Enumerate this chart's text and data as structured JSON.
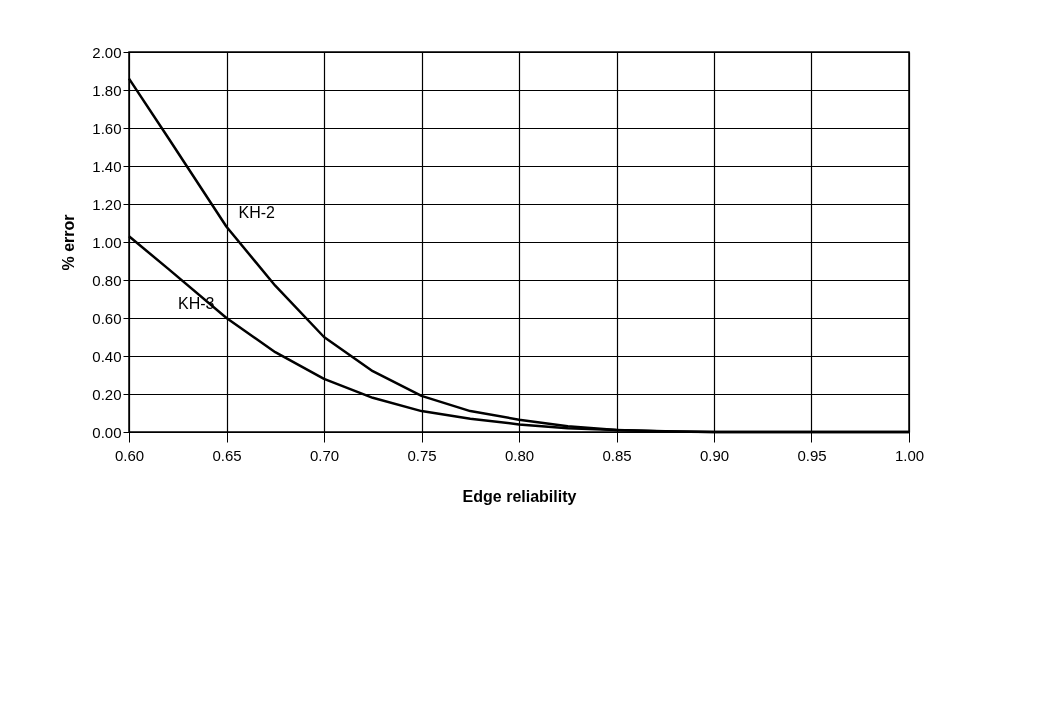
{
  "chart_data": {
    "type": "line",
    "xlabel": "Edge reliability",
    "ylabel": "% error",
    "x": [
      0.6,
      0.62,
      0.65,
      0.675,
      0.7,
      0.725,
      0.75,
      0.775,
      0.8,
      0.825,
      0.85,
      0.875,
      0.9,
      0.95,
      1.0
    ],
    "series": [
      {
        "name": "KH-2",
        "color": "#000000",
        "values": [
          1.86,
          1.55,
          1.08,
          0.77,
          0.5,
          0.32,
          0.19,
          0.11,
          0.065,
          0.03,
          0.01,
          0.004,
          0.0,
          0.0,
          0.0
        ]
      },
      {
        "name": "KH-3",
        "color": "#000000",
        "values": [
          1.03,
          0.86,
          0.6,
          0.42,
          0.28,
          0.18,
          0.11,
          0.07,
          0.04,
          0.02,
          0.01,
          0.003,
          0.0,
          0.0,
          0.0
        ]
      }
    ],
    "xlim": [
      0.6,
      1.0
    ],
    "xticks": [
      {
        "value": 0.6,
        "label": "0.60"
      },
      {
        "value": 0.65,
        "label": "0.65"
      },
      {
        "value": 0.7,
        "label": "0.70"
      },
      {
        "value": 0.75,
        "label": "0.75"
      },
      {
        "value": 0.8,
        "label": "0.80"
      },
      {
        "value": 0.85,
        "label": "0.85"
      },
      {
        "value": 0.9,
        "label": "0.90"
      },
      {
        "value": 0.95,
        "label": "0.95"
      },
      {
        "value": 1.0,
        "label": "1.00"
      }
    ],
    "ylim": [
      0,
      2.0
    ],
    "yticks": [
      {
        "value": 0,
        "label": "0.00"
      },
      {
        "value": 0.2,
        "label": "0.20"
      },
      {
        "value": 0.4,
        "label": "0.40"
      },
      {
        "value": 0.6,
        "label": "0.60"
      },
      {
        "value": 0.8,
        "label": "0.80"
      },
      {
        "value": 1.0,
        "label": "1.00"
      },
      {
        "value": 1.2,
        "label": "1.20"
      },
      {
        "value": 1.4,
        "label": "1.40"
      },
      {
        "value": 1.6,
        "label": "1.60"
      },
      {
        "value": 1.8,
        "label": "1.80"
      },
      {
        "value": 2.0,
        "label": "2.00"
      }
    ],
    "grid": true,
    "legend": false,
    "marker": "none",
    "line_style": "solid"
  }
}
